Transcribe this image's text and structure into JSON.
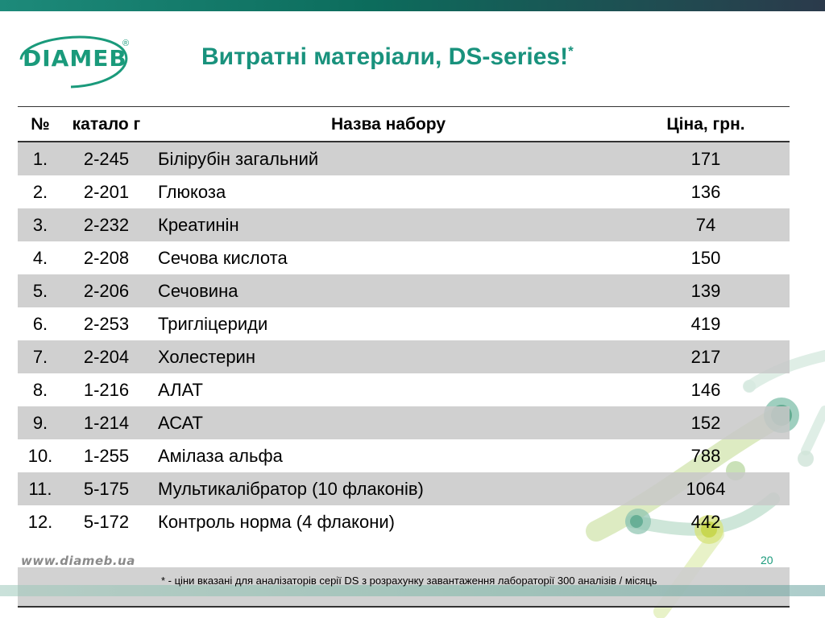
{
  "header": {
    "logo": "DIAMEB",
    "logo_mark": "®",
    "title": "Витратні матеріали, DS-series!",
    "title_mark": "*"
  },
  "table": {
    "headers": {
      "no": "№",
      "catalog": "катало г",
      "name": "Назва набору",
      "price": "Ціна, грн."
    },
    "rows": [
      {
        "no": "1.",
        "catalog": "2-245",
        "name": "Білірубін загальний",
        "price": "171"
      },
      {
        "no": "2.",
        "catalog": "2-201",
        "name": "Глюкоза",
        "price": "136"
      },
      {
        "no": "3.",
        "catalog": "2-232",
        "name": "Креатинін",
        "price": "74"
      },
      {
        "no": "4.",
        "catalog": "2-208",
        "name": "Сечова кислота",
        "price": "150"
      },
      {
        "no": "5.",
        "catalog": "2-206",
        "name": "Сечовина",
        "price": "139"
      },
      {
        "no": "6.",
        "catalog": "2-253",
        "name": "Тригліцериди",
        "price": "419"
      },
      {
        "no": "7.",
        "catalog": "2-204",
        "name": "Холестерин",
        "price": "217"
      },
      {
        "no": "8.",
        "catalog": "1-216",
        "name": "АЛАТ",
        "price": "146"
      },
      {
        "no": "9.",
        "catalog": "1-214",
        "name": "АСАТ",
        "price": "152"
      },
      {
        "no": "10.",
        "catalog": "1-255",
        "name": "Амілаза альфа",
        "price": "788"
      },
      {
        "no": "11.",
        "catalog": "5-175",
        "name": "Мультикалібратор (10 флаконів)",
        "price": "1064"
      },
      {
        "no": "12.",
        "catalog": "5-172",
        "name": "Контроль норма (4 флакони)",
        "price": "442"
      }
    ],
    "footnote": "* - ціни вказані для аналізаторів серії DS з розрахунку завантаження лабораторії 300 аналізів / місяць"
  },
  "footer": {
    "website": "www.diameb.ua",
    "page_number": "20"
  },
  "colors": {
    "brand": "#19927d",
    "row_shade": "#c8c8c8"
  }
}
